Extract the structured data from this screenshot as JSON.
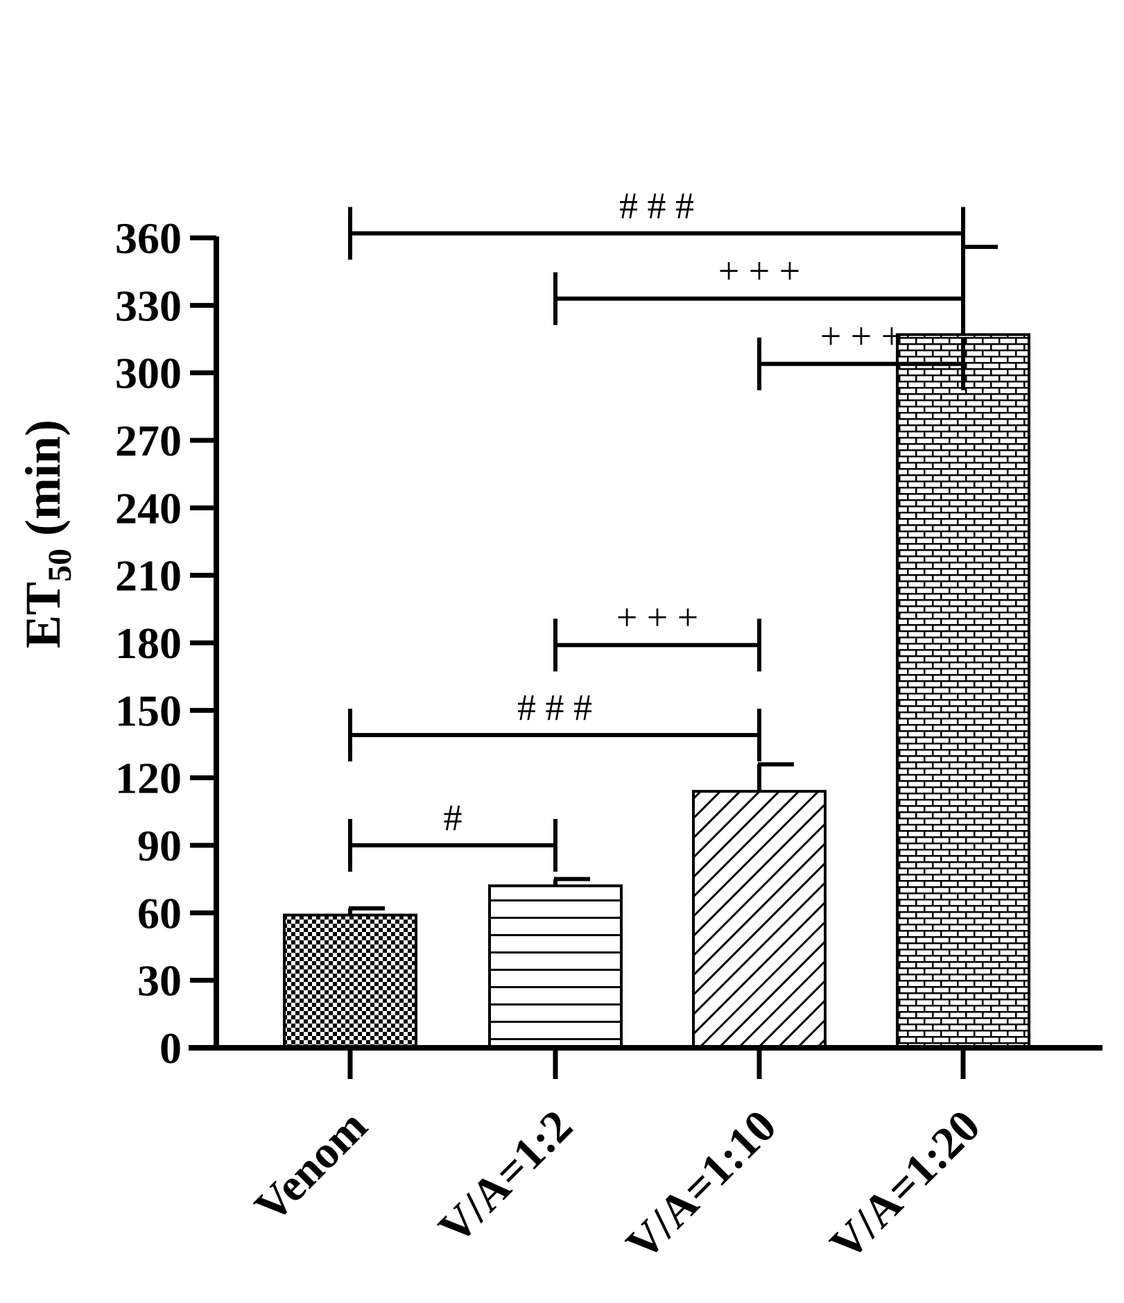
{
  "chart_data": {
    "type": "bar",
    "title": "",
    "xlabel": "",
    "ylabel": "ET",
    "ylabel_subscript": "50",
    "ylabel_unit": " (min)",
    "ylim": [
      0,
      360
    ],
    "yticks": [
      0,
      30,
      60,
      90,
      120,
      150,
      180,
      210,
      240,
      270,
      300,
      330,
      360
    ],
    "categories": [
      "Venom",
      "V/A=1:2",
      "V/A=1:10",
      "V/A=1:20"
    ],
    "values": [
      59,
      72,
      114,
      317
    ],
    "error_upper": [
      62,
      75,
      126,
      356
    ],
    "patterns": [
      "checker",
      "hstripes",
      "diagonal",
      "brick"
    ],
    "significance": [
      {
        "from": 0,
        "to": 3,
        "y": 362,
        "label": "# # #"
      },
      {
        "from": 1,
        "to": 3,
        "y": 333,
        "label": "+ + +"
      },
      {
        "from": 2,
        "to": 3,
        "y": 304,
        "label": "+ + +"
      },
      {
        "from": 1,
        "to": 2,
        "y": 179,
        "label": "+ + +"
      },
      {
        "from": 0,
        "to": 2,
        "y": 139,
        "label": "# # #"
      },
      {
        "from": 0,
        "to": 1,
        "y": 90,
        "label": "#"
      }
    ],
    "colors": {
      "axis": "#000000",
      "bar_fill": "#ffffff",
      "pattern": "#000000"
    }
  }
}
